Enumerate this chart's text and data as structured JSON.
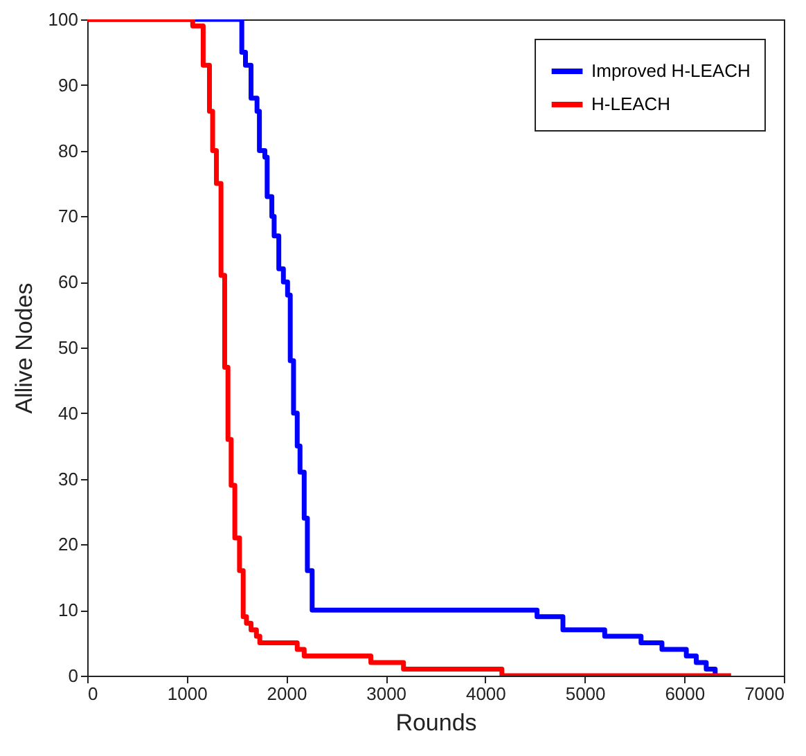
{
  "chart_data": {
    "type": "step",
    "xlabel": "Rounds",
    "ylabel": "Allive Nodes",
    "xlim": [
      0,
      7000
    ],
    "ylim": [
      0,
      100
    ],
    "xticks": [
      0,
      1000,
      2000,
      3000,
      4000,
      5000,
      6000,
      7000
    ],
    "yticks": [
      0,
      10,
      20,
      30,
      40,
      50,
      60,
      70,
      80,
      90,
      100
    ],
    "grid": false,
    "legend": "top right",
    "series": [
      {
        "name": "Improved H-LEACH",
        "color": "#0000ff",
        "x": [
          0,
          1553,
          1590,
          1646,
          1706,
          1730,
          1785,
          1808,
          1855,
          1878,
          1925,
          1971,
          2013,
          2040,
          2073,
          2110,
          2138,
          2180,
          2212,
          2260,
          4520,
          4780,
          5200,
          5565,
          5775,
          6020,
          6120,
          6220,
          6310,
          6330
        ],
        "values": [
          100,
          95,
          93,
          88,
          86,
          80,
          79,
          73,
          70,
          67,
          62,
          60,
          58,
          48,
          40,
          35,
          31,
          24,
          16,
          10,
          9,
          7,
          6,
          5,
          4,
          3,
          2,
          1,
          0,
          0
        ]
      },
      {
        "name": "H-LEACH",
        "color": "#ff0000",
        "x": [
          0,
          1060,
          1165,
          1228,
          1260,
          1298,
          1344,
          1381,
          1414,
          1446,
          1483,
          1530,
          1567,
          1600,
          1646,
          1700,
          1734,
          2110,
          2180,
          2850,
          3178,
          4167,
          6470
        ],
        "values": [
          100,
          99,
          93,
          86,
          80,
          75,
          61,
          47,
          36,
          29,
          21,
          16,
          9,
          8,
          7,
          6,
          5,
          4,
          3,
          2,
          1,
          0,
          0
        ]
      }
    ]
  }
}
